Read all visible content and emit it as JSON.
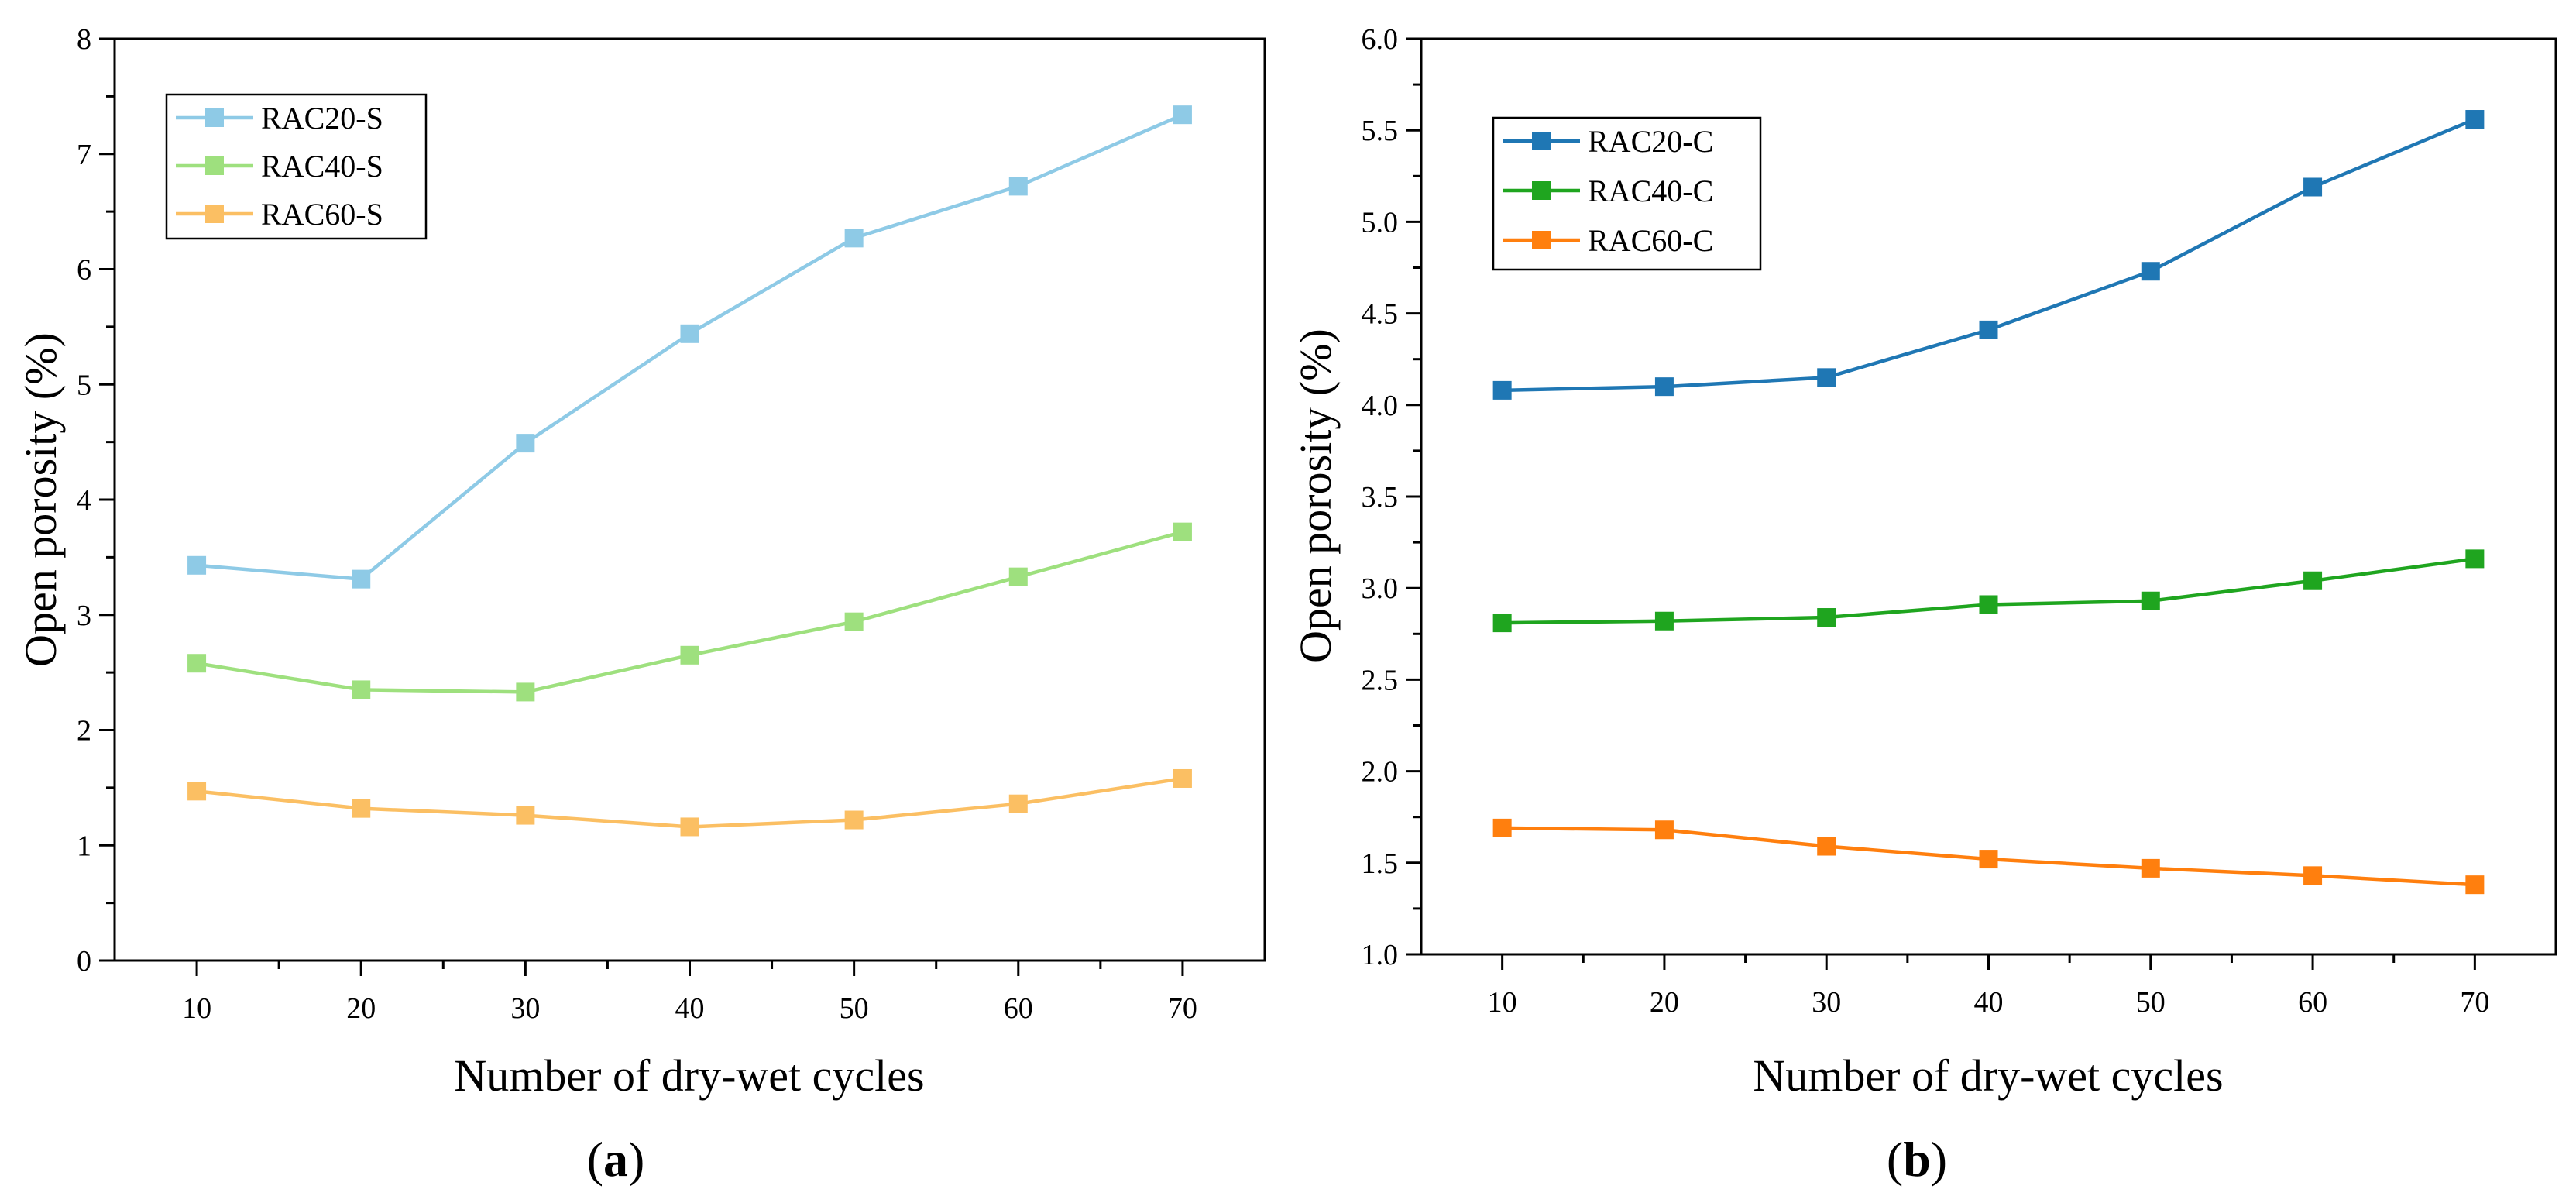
{
  "chart_data": [
    {
      "id": "a",
      "type": "line",
      "panel_label": {
        "open": "(",
        "letter": "a",
        "close": ")"
      },
      "xlabel": "Number of dry-wet cycles",
      "ylabel": "Open porosity (%)",
      "x": [
        10,
        20,
        30,
        40,
        50,
        60,
        70
      ],
      "xticks": [
        10,
        20,
        30,
        40,
        50,
        60,
        70
      ],
      "xtick_labels": [
        "10",
        "20",
        "30",
        "40",
        "50",
        "60",
        "70"
      ],
      "xlim": [
        5,
        75
      ],
      "ylim": [
        0,
        8
      ],
      "yticks": [
        0,
        1,
        2,
        3,
        4,
        5,
        6,
        7,
        8
      ],
      "ytick_labels": [
        "0",
        "1",
        "2",
        "3",
        "4",
        "5",
        "6",
        "7",
        "8"
      ],
      "legend_position": "top-left",
      "grid": false,
      "series": [
        {
          "name": "RAC20-S",
          "color": "#8ecae6",
          "values": [
            3.43,
            3.31,
            4.49,
            5.44,
            6.27,
            6.72,
            7.34
          ]
        },
        {
          "name": "RAC40-S",
          "color": "#9ee07e",
          "values": [
            2.58,
            2.35,
            2.33,
            2.65,
            2.94,
            3.33,
            3.72
          ]
        },
        {
          "name": "RAC60-S",
          "color": "#fbbf63",
          "values": [
            1.47,
            1.32,
            1.26,
            1.16,
            1.22,
            1.36,
            1.58
          ]
        }
      ]
    },
    {
      "id": "b",
      "type": "line",
      "panel_label": {
        "open": "(",
        "letter": "b",
        "close": ")"
      },
      "xlabel": "Number of dry-wet cycles",
      "ylabel": "Open porosity (%)",
      "x": [
        10,
        20,
        30,
        40,
        50,
        60,
        70
      ],
      "xticks": [
        10,
        20,
        30,
        40,
        50,
        60,
        70
      ],
      "xtick_labels": [
        "10",
        "20",
        "30",
        "40",
        "50",
        "60",
        "70"
      ],
      "xlim": [
        5,
        75
      ],
      "ylim": [
        1.0,
        6.0
      ],
      "yticks": [
        1.0,
        1.5,
        2.0,
        2.5,
        3.0,
        3.5,
        4.0,
        4.5,
        5.0,
        5.5,
        6.0
      ],
      "ytick_labels": [
        "1.0",
        "1.5",
        "2.0",
        "2.5",
        "3.0",
        "3.5",
        "4.0",
        "4.5",
        "5.0",
        "5.5",
        "6.0"
      ],
      "legend_position": "top-left",
      "grid": false,
      "series": [
        {
          "name": "RAC20-C",
          "color": "#1f77b4",
          "values": [
            4.08,
            4.1,
            4.15,
            4.41,
            4.73,
            5.19,
            5.56
          ]
        },
        {
          "name": "RAC40-C",
          "color": "#1fa51f",
          "values": [
            2.81,
            2.82,
            2.84,
            2.91,
            2.93,
            3.04,
            3.16
          ]
        },
        {
          "name": "RAC60-C",
          "color": "#ff7f0e",
          "values": [
            1.69,
            1.68,
            1.59,
            1.52,
            1.47,
            1.43,
            1.38
          ]
        }
      ]
    }
  ]
}
